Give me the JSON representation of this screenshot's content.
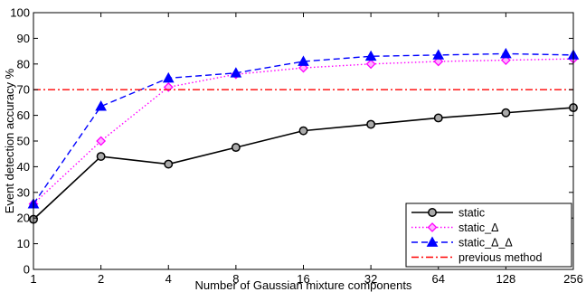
{
  "chart_data": {
    "type": "line",
    "title": "",
    "xlabel": "Number of Gaussian mixture components",
    "ylabel": "Event detection accuracy %",
    "x_scale": "log2",
    "categories": [
      "1",
      "2",
      "4",
      "8",
      "16",
      "32",
      "64",
      "128",
      "256"
    ],
    "ylim": [
      0,
      100
    ],
    "yticks": [
      0,
      10,
      20,
      30,
      40,
      50,
      60,
      70,
      80,
      90,
      100
    ],
    "grid": false,
    "legend_position": "bottom-right",
    "series": [
      {
        "name": "static",
        "color": "#000000",
        "dash": "solid",
        "marker": "circle",
        "values": [
          19.5,
          44,
          41,
          47.5,
          54,
          56.5,
          59,
          61,
          63
        ]
      },
      {
        "name": "static_Δ",
        "color": "#ff00ff",
        "dash": "dotted",
        "marker": "diamond",
        "values": [
          25.5,
          50,
          71,
          76,
          78.5,
          80,
          81,
          81.5,
          82
        ]
      },
      {
        "name": "static_Δ_Δ",
        "color": "#0000ff",
        "dash": "dashed",
        "marker": "triangle",
        "values": [
          25.5,
          63.5,
          74.5,
          76.5,
          81,
          83,
          83.5,
          84,
          83.5
        ]
      },
      {
        "name": "previous method",
        "color": "#ff0000",
        "dash": "dashdot",
        "marker": "none",
        "values": [
          70,
          70,
          70,
          70,
          70,
          70,
          70,
          70,
          70
        ]
      }
    ]
  }
}
